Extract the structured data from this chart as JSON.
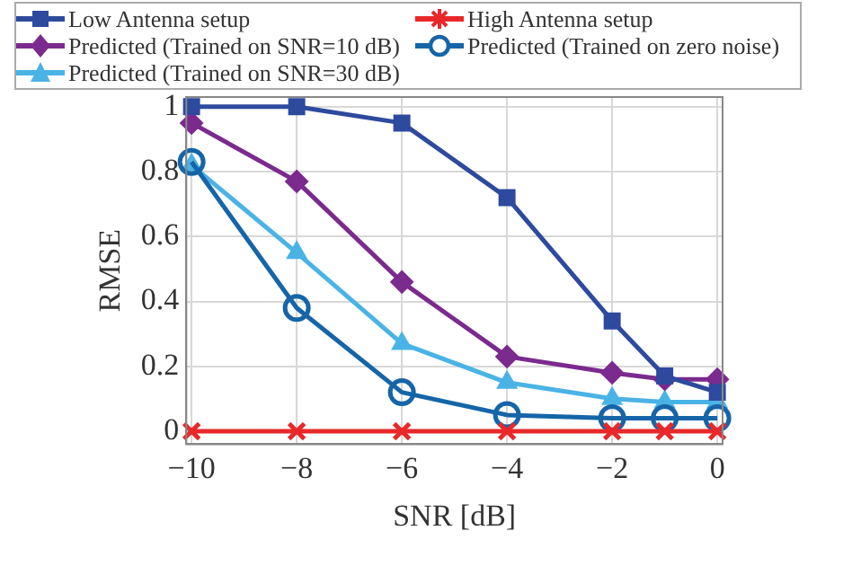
{
  "chart_data": {
    "type": "line",
    "xlabel": "SNR [dB]",
    "ylabel": "RMSE",
    "x": [
      -10,
      -8,
      -6,
      -4,
      -2,
      -1,
      0
    ],
    "series": [
      {
        "name": "Low Antenna setup",
        "color": "#2e4a9e",
        "marker": "square",
        "values": [
          1,
          1,
          0.95,
          0.72,
          0.34,
          0.17,
          0.12
        ]
      },
      {
        "name": "High Antenna setup",
        "color": "#e8282a",
        "marker": "cross",
        "values": [
          0,
          0,
          0,
          0,
          0,
          0,
          0
        ]
      },
      {
        "name": "Predicted (Trained on SNR=10 dB)",
        "color": "#7b2a8e",
        "marker": "diamond",
        "values": [
          0.95,
          0.77,
          0.46,
          0.23,
          0.18,
          0.16,
          0.16
        ]
      },
      {
        "name": "Predicted (Trained on zero noise)",
        "color": "#1565a8",
        "marker": "circle",
        "values": [
          0.83,
          0.38,
          0.12,
          0.05,
          0.04,
          0.04,
          0.04
        ]
      },
      {
        "name": "Predicted (Trained on SNR=30 dB)",
        "color": "#4ab3e6",
        "marker": "triangle",
        "values": [
          0.82,
          0.55,
          0.27,
          0.15,
          0.1,
          0.09,
          0.09
        ]
      }
    ],
    "xlim": [
      -10.1,
      0.1
    ],
    "xticks": [
      {
        "value": -10,
        "label": "−10"
      },
      {
        "value": -8,
        "label": "−8"
      },
      {
        "value": -6,
        "label": "−6"
      },
      {
        "value": -4,
        "label": "−4"
      },
      {
        "value": -2,
        "label": "−2"
      },
      0
    ],
    "ylim": [
      -0.04,
      1.03
    ],
    "yticks": [
      0,
      0.2,
      0.4,
      0.6,
      0.8,
      1
    ],
    "grid": true,
    "legend": "top",
    "line_style": "solid"
  }
}
